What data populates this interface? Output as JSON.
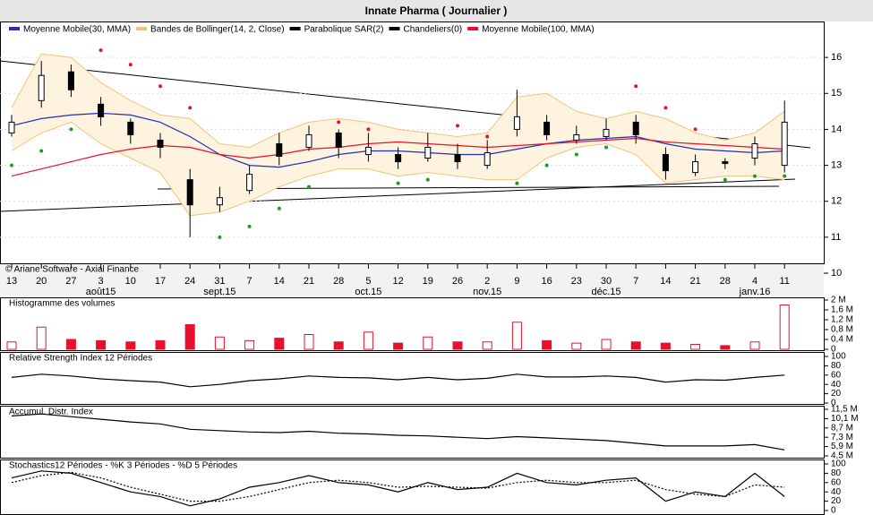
{
  "chart_data": [
    {
      "type": "candlestick",
      "title": "Innate Pharma  ( Journalier )",
      "source": "© Ariane Software - Axial Finance",
      "categories": [
        "13",
        "20",
        "27",
        "3",
        "10",
        "17",
        "24",
        "31",
        "7",
        "14",
        "21",
        "28",
        "5",
        "12",
        "19",
        "26",
        "2",
        "9",
        "16",
        "23",
        "30",
        "7",
        "14",
        "21",
        "28",
        "4",
        "11"
      ],
      "month_labels": [
        null,
        null,
        null,
        "août15",
        null,
        null,
        null,
        "sept.15",
        null,
        null,
        null,
        null,
        "oct.15",
        null,
        null,
        null,
        "nov.15",
        null,
        null,
        null,
        "déc.15",
        null,
        null,
        null,
        null,
        "janv.16",
        null
      ],
      "open": [
        13.9,
        14.8,
        15.6,
        14.7,
        14.2,
        13.7,
        12.6,
        11.9,
        12.3,
        13.6,
        13.5,
        13.9,
        13.3,
        13.3,
        13.2,
        13.3,
        13.0,
        14.0,
        14.2,
        13.7,
        13.8,
        14.2,
        13.3,
        12.8,
        13.1,
        13.2,
        13.0
      ],
      "high": [
        14.4,
        15.9,
        15.8,
        14.9,
        14.3,
        13.9,
        12.9,
        12.4,
        13.0,
        13.9,
        14.1,
        14.0,
        13.9,
        13.5,
        13.9,
        13.6,
        13.7,
        15.1,
        14.4,
        14.1,
        14.3,
        14.4,
        13.5,
        13.3,
        13.2,
        13.8,
        14.8
      ],
      "low": [
        13.8,
        14.6,
        14.9,
        14.1,
        13.6,
        13.2,
        11.0,
        11.7,
        12.2,
        13.0,
        13.4,
        13.2,
        13.1,
        12.9,
        13.1,
        12.9,
        12.9,
        13.8,
        13.7,
        13.6,
        13.7,
        13.6,
        12.6,
        12.7,
        12.9,
        13.0,
        12.8
      ],
      "close": [
        14.2,
        15.5,
        15.1,
        14.35,
        13.85,
        13.5,
        11.9,
        12.1,
        12.75,
        13.25,
        13.85,
        13.5,
        13.5,
        13.1,
        13.5,
        13.1,
        13.35,
        14.35,
        13.85,
        13.85,
        14.0,
        13.85,
        12.85,
        13.1,
        13.05,
        13.6,
        14.2
      ],
      "ylim": [
        10,
        17
      ],
      "yticks": [
        10,
        11,
        12,
        13,
        14,
        15,
        16
      ],
      "grid": true,
      "overlays": [
        {
          "name": "Moyenne Mobile(30, MMA)",
          "color": "#1f2fbf",
          "values": [
            14.1,
            14.3,
            14.4,
            14.45,
            14.4,
            14.2,
            13.8,
            13.3,
            13.0,
            12.95,
            13.1,
            13.3,
            13.4,
            13.4,
            13.35,
            13.3,
            13.3,
            13.45,
            13.6,
            13.7,
            13.75,
            13.8,
            13.6,
            13.45,
            13.4,
            13.35,
            13.4
          ]
        },
        {
          "name": "Bandes de Bollinger(14, 2, Close)",
          "color": "#f5c27a",
          "fill": "#fdf3df",
          "upper": [
            14.6,
            16.1,
            16.0,
            15.3,
            14.8,
            14.4,
            14.3,
            13.6,
            13.5,
            13.9,
            14.2,
            14.3,
            14.2,
            14.0,
            13.9,
            13.8,
            13.9,
            14.9,
            15.0,
            14.5,
            14.3,
            14.5,
            14.3,
            13.9,
            13.7,
            13.9,
            14.5
          ],
          "lower": [
            13.4,
            13.9,
            14.2,
            13.6,
            13.2,
            12.8,
            11.6,
            11.7,
            12.0,
            12.4,
            12.7,
            12.9,
            12.9,
            12.7,
            12.8,
            12.7,
            12.6,
            12.6,
            13.2,
            13.5,
            13.6,
            13.3,
            12.5,
            12.6,
            12.7,
            12.7,
            12.6
          ]
        },
        {
          "name": "Parabolique SAR(2)",
          "color": "#000000",
          "color_above": "#e8102a",
          "color_below": "#16a016",
          "values": [
            13.0,
            13.4,
            14.0,
            16.2,
            15.8,
            15.2,
            14.6,
            11.0,
            11.3,
            11.8,
            12.4,
            14.2,
            14.0,
            12.5,
            12.6,
            14.1,
            13.8,
            12.5,
            13.0,
            13.3,
            13.5,
            15.2,
            14.6,
            14.0,
            12.6,
            12.7,
            12.7
          ]
        },
        {
          "name": "Chandeliers(0)",
          "color": "#000000"
        },
        {
          "name": "Moyenne Mobile(100, MMA)",
          "color": "#e8102a",
          "values": [
            12.7,
            12.9,
            13.1,
            13.3,
            13.45,
            13.55,
            13.5,
            13.3,
            13.2,
            13.3,
            13.45,
            13.5,
            13.6,
            13.65,
            13.6,
            13.55,
            13.5,
            13.55,
            13.6,
            13.65,
            13.7,
            13.75,
            13.65,
            13.6,
            13.55,
            13.5,
            13.45
          ]
        }
      ]
    },
    {
      "type": "bar",
      "title": "Histogramme des volumes",
      "color": "#e8102a",
      "values": [
        300000,
        900000,
        400000,
        350000,
        300000,
        350000,
        1000000,
        500000,
        350000,
        450000,
        600000,
        300000,
        700000,
        250000,
        500000,
        300000,
        300000,
        1100000,
        350000,
        250000,
        400000,
        300000,
        250000,
        200000,
        150000,
        300000,
        1800000
      ],
      "ylim": [
        0,
        2000000
      ],
      "yticks": [
        {
          "value": 2000000,
          "label": "2 M"
        },
        {
          "value": 1600000,
          "label": "1,6 M"
        },
        {
          "value": 1200000,
          "label": "1,2 M"
        },
        {
          "value": 800000,
          "label": "0,8 M"
        },
        {
          "value": 400000,
          "label": "0,4 M"
        },
        0
      ]
    },
    {
      "type": "line",
      "title": "Relative Strength Index 12 Périodes",
      "series": [
        {
          "color": "#000000",
          "values": [
            55,
            62,
            58,
            52,
            48,
            45,
            35,
            40,
            48,
            52,
            58,
            55,
            54,
            50,
            55,
            50,
            53,
            62,
            56,
            56,
            58,
            55,
            45,
            50,
            49,
            55,
            60
          ]
        }
      ],
      "ylim": [
        0,
        100
      ],
      "yticks": [
        100,
        80,
        60,
        40,
        20,
        0
      ]
    },
    {
      "type": "line",
      "title": "Accumul. Distr. Index",
      "series": [
        {
          "color": "#000000",
          "values": [
            10500000,
            10800000,
            10400000,
            10000000,
            9600000,
            9300000,
            8500000,
            8300000,
            8100000,
            8000000,
            8200000,
            7900000,
            7800000,
            7600000,
            7500000,
            7300000,
            7100000,
            7400000,
            7200000,
            7000000,
            6800000,
            6400000,
            6000000,
            6000000,
            6000000,
            6200000,
            5400000
          ]
        }
      ],
      "ylim": [
        4500000,
        11500000
      ],
      "yticks": [
        {
          "value": 11500000,
          "label": "11,5 M"
        },
        {
          "value": 10100000,
          "label": "10,1 M"
        },
        {
          "value": 8700000,
          "label": "8,7 M"
        },
        {
          "value": 7300000,
          "label": "7,3 M"
        },
        {
          "value": 5900000,
          "label": "5,9 M"
        },
        {
          "value": 4500000,
          "label": "4,5 M"
        }
      ]
    },
    {
      "type": "line",
      "title": "Stochastics12 Périodes  -  %K 3 Périodes  -  %D 5 Périodes",
      "series": [
        {
          "color": "#000000",
          "values": [
            70,
            85,
            80,
            60,
            40,
            30,
            10,
            25,
            50,
            60,
            75,
            60,
            55,
            40,
            60,
            45,
            50,
            80,
            60,
            55,
            65,
            70,
            20,
            40,
            30,
            80,
            30
          ]
        },
        {
          "color": "#000000",
          "dash": "dotted",
          "values": [
            60,
            75,
            82,
            70,
            50,
            35,
            20,
            20,
            30,
            45,
            60,
            65,
            60,
            50,
            52,
            50,
            48,
            60,
            65,
            60,
            60,
            65,
            45,
            35,
            30,
            55,
            50
          ]
        }
      ],
      "ylim": [
        0,
        100
      ],
      "yticks": [
        100,
        80,
        60,
        40,
        20,
        0
      ]
    }
  ]
}
